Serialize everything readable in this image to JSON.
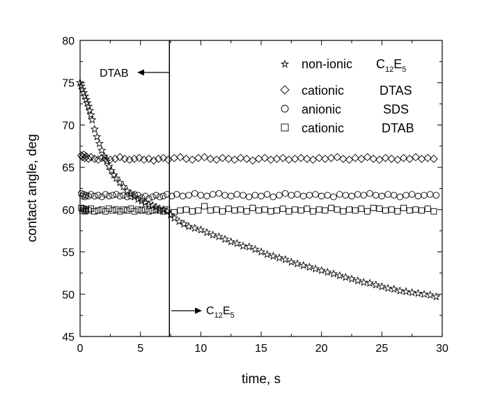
{
  "chart_data": {
    "type": "scatter",
    "xlabel": "time, s",
    "ylabel": "contact angle, deg",
    "xlim": [
      0,
      30
    ],
    "ylim": [
      45,
      80
    ],
    "xticks": [
      "0",
      "5",
      "10",
      "15",
      "20",
      "25",
      "30"
    ],
    "yticks": [
      "45",
      "50",
      "55",
      "60",
      "65",
      "70",
      "75",
      "80"
    ],
    "grid": false,
    "legend_position": "top-right",
    "vertical_line_x": 7.4,
    "annotations": [
      {
        "text": "DTAB",
        "arrow": "left"
      },
      {
        "text_main": "C",
        "sub1": "12",
        "text_mid": "E",
        "sub2": "5",
        "arrow": "right"
      }
    ],
    "legend": [
      {
        "type_label": "non-ionic",
        "name_main": "C",
        "sub1": "12",
        "name_mid": "E",
        "sub2": "5",
        "marker": "star"
      },
      {
        "type_label": "cationic",
        "name_main": "DTAS",
        "marker": "diamond"
      },
      {
        "type_label": "anionic",
        "name_main": "SDS",
        "marker": "circle"
      },
      {
        "type_label": "cationic",
        "name_main": "DTAB",
        "marker": "square"
      }
    ],
    "series": [
      {
        "name": "non-ionic C12E5",
        "marker": "star",
        "points": [
          [
            0.0,
            75.0
          ],
          [
            0.1,
            74.6
          ],
          [
            0.2,
            74.2
          ],
          [
            0.3,
            73.8
          ],
          [
            0.4,
            73.4
          ],
          [
            0.5,
            73.0
          ],
          [
            0.6,
            72.6
          ],
          [
            0.7,
            72.2
          ],
          [
            0.8,
            71.7
          ],
          [
            0.9,
            71.2
          ],
          [
            1.0,
            70.6
          ],
          [
            1.2,
            69.5
          ],
          [
            1.4,
            68.6
          ],
          [
            1.6,
            67.8
          ],
          [
            1.8,
            67.0
          ],
          [
            2.0,
            66.3
          ],
          [
            2.2,
            65.7
          ],
          [
            2.4,
            65.1
          ],
          [
            2.6,
            64.6
          ],
          [
            2.8,
            64.1
          ],
          [
            3.0,
            63.7
          ],
          [
            3.3,
            63.2
          ],
          [
            3.6,
            62.7
          ],
          [
            3.9,
            62.2
          ],
          [
            4.2,
            61.9
          ],
          [
            4.5,
            61.5
          ],
          [
            4.8,
            61.2
          ],
          [
            5.1,
            61.0
          ],
          [
            5.4,
            60.8
          ],
          [
            5.7,
            60.6
          ],
          [
            6.0,
            60.5
          ],
          [
            6.3,
            60.3
          ],
          [
            6.6,
            60.1
          ],
          [
            6.9,
            60.0
          ],
          [
            7.2,
            59.8
          ],
          [
            7.5,
            59.4
          ],
          [
            7.8,
            59.0
          ],
          [
            8.2,
            58.6
          ],
          [
            8.6,
            58.3
          ],
          [
            9.0,
            58.0
          ],
          [
            9.5,
            57.8
          ],
          [
            10.0,
            57.6
          ],
          [
            10.5,
            57.3
          ],
          [
            11.0,
            57.0
          ],
          [
            11.5,
            56.8
          ],
          [
            12.0,
            56.5
          ],
          [
            12.5,
            56.2
          ],
          [
            13.0,
            56.0
          ],
          [
            13.5,
            55.7
          ],
          [
            14.0,
            55.6
          ],
          [
            14.5,
            55.3
          ],
          [
            15.0,
            55.0
          ],
          [
            15.5,
            54.7
          ],
          [
            16.0,
            54.5
          ],
          [
            16.5,
            54.3
          ],
          [
            17.0,
            54.1
          ],
          [
            17.5,
            53.8
          ],
          [
            18.0,
            53.6
          ],
          [
            18.5,
            53.4
          ],
          [
            19.0,
            53.2
          ],
          [
            19.5,
            53.0
          ],
          [
            20.0,
            52.8
          ],
          [
            20.5,
            52.6
          ],
          [
            21.0,
            52.4
          ],
          [
            21.5,
            52.2
          ],
          [
            22.0,
            52.0
          ],
          [
            22.5,
            51.8
          ],
          [
            23.0,
            51.6
          ],
          [
            23.5,
            51.4
          ],
          [
            24.0,
            51.3
          ],
          [
            24.5,
            51.1
          ],
          [
            25.0,
            50.9
          ],
          [
            25.5,
            50.7
          ],
          [
            26.0,
            50.6
          ],
          [
            26.5,
            50.4
          ],
          [
            27.0,
            50.3
          ],
          [
            27.5,
            50.2
          ],
          [
            28.0,
            50.1
          ],
          [
            28.5,
            50.0
          ],
          [
            29.0,
            49.9
          ],
          [
            29.5,
            49.7
          ]
        ]
      },
      {
        "name": "cationic DTAS",
        "marker": "diamond",
        "points": [
          [
            0.1,
            66.4
          ],
          [
            0.2,
            66.2
          ],
          [
            0.3,
            66.5
          ],
          [
            0.4,
            66.1
          ],
          [
            0.5,
            66.3
          ],
          [
            0.7,
            66.0
          ],
          [
            0.9,
            66.2
          ],
          [
            1.2,
            66.0
          ],
          [
            1.5,
            65.9
          ],
          [
            1.8,
            66.1
          ],
          [
            2.1,
            66.0
          ],
          [
            2.5,
            65.9
          ],
          [
            2.9,
            66.0
          ],
          [
            3.3,
            66.2
          ],
          [
            3.7,
            66.0
          ],
          [
            4.1,
            65.9
          ],
          [
            4.5,
            66.0
          ],
          [
            4.9,
            66.1
          ],
          [
            5.3,
            65.9
          ],
          [
            5.7,
            66.0
          ],
          [
            6.1,
            65.8
          ],
          [
            6.5,
            66.0
          ],
          [
            6.9,
            66.1
          ],
          [
            7.3,
            65.9
          ],
          [
            7.8,
            66.1
          ],
          [
            8.3,
            66.2
          ],
          [
            8.8,
            66.0
          ],
          [
            9.3,
            65.9
          ],
          [
            9.8,
            66.1
          ],
          [
            10.3,
            66.2
          ],
          [
            10.8,
            66.0
          ],
          [
            11.3,
            65.9
          ],
          [
            11.8,
            66.1
          ],
          [
            12.3,
            66.0
          ],
          [
            12.8,
            65.9
          ],
          [
            13.3,
            66.1
          ],
          [
            13.8,
            66.0
          ],
          [
            14.3,
            65.8
          ],
          [
            14.8,
            66.0
          ],
          [
            15.3,
            66.1
          ],
          [
            15.8,
            65.9
          ],
          [
            16.3,
            66.0
          ],
          [
            16.8,
            66.1
          ],
          [
            17.3,
            65.9
          ],
          [
            17.8,
            66.0
          ],
          [
            18.3,
            66.1
          ],
          [
            18.8,
            66.0
          ],
          [
            19.3,
            65.9
          ],
          [
            19.8,
            66.1
          ],
          [
            20.3,
            66.0
          ],
          [
            20.8,
            66.1
          ],
          [
            21.3,
            66.2
          ],
          [
            21.8,
            66.0
          ],
          [
            22.3,
            65.9
          ],
          [
            22.8,
            66.1
          ],
          [
            23.3,
            66.0
          ],
          [
            23.8,
            66.2
          ],
          [
            24.3,
            66.0
          ],
          [
            24.8,
            65.9
          ],
          [
            25.3,
            66.1
          ],
          [
            25.8,
            66.0
          ],
          [
            26.3,
            65.9
          ],
          [
            26.8,
            66.1
          ],
          [
            27.3,
            66.0
          ],
          [
            27.8,
            66.2
          ],
          [
            28.3,
            66.0
          ],
          [
            28.8,
            66.1
          ],
          [
            29.3,
            66.0
          ]
        ]
      },
      {
        "name": "anionic SDS",
        "marker": "circle",
        "points": [
          [
            0.1,
            61.9
          ],
          [
            0.2,
            61.6
          ],
          [
            0.3,
            61.8
          ],
          [
            0.4,
            61.5
          ],
          [
            0.5,
            61.7
          ],
          [
            0.7,
            61.6
          ],
          [
            0.9,
            61.8
          ],
          [
            1.2,
            61.6
          ],
          [
            1.5,
            61.7
          ],
          [
            1.8,
            61.5
          ],
          [
            2.1,
            61.8
          ],
          [
            2.4,
            61.6
          ],
          [
            2.7,
            61.7
          ],
          [
            3.0,
            61.8
          ],
          [
            3.3,
            61.6
          ],
          [
            3.6,
            61.7
          ],
          [
            3.9,
            61.5
          ],
          [
            4.2,
            61.6
          ],
          [
            4.5,
            61.8
          ],
          [
            4.8,
            61.7
          ],
          [
            5.1,
            61.4
          ],
          [
            5.4,
            61.6
          ],
          [
            5.7,
            61.3
          ],
          [
            6.0,
            61.5
          ],
          [
            6.3,
            61.7
          ],
          [
            6.6,
            61.5
          ],
          [
            6.9,
            61.6
          ],
          [
            7.2,
            61.8
          ],
          [
            7.6,
            61.6
          ],
          [
            8.0,
            61.8
          ],
          [
            8.5,
            61.6
          ],
          [
            9.0,
            61.7
          ],
          [
            9.5,
            61.9
          ],
          [
            10.0,
            61.7
          ],
          [
            10.5,
            61.6
          ],
          [
            11.0,
            61.8
          ],
          [
            11.5,
            61.9
          ],
          [
            12.0,
            61.7
          ],
          [
            12.5,
            61.6
          ],
          [
            13.0,
            61.8
          ],
          [
            13.5,
            61.7
          ],
          [
            14.0,
            61.5
          ],
          [
            14.5,
            61.7
          ],
          [
            15.0,
            61.6
          ],
          [
            15.5,
            61.8
          ],
          [
            16.0,
            61.5
          ],
          [
            16.5,
            61.7
          ],
          [
            17.0,
            61.9
          ],
          [
            17.5,
            61.7
          ],
          [
            18.0,
            61.8
          ],
          [
            18.5,
            61.6
          ],
          [
            19.0,
            61.7
          ],
          [
            19.5,
            61.8
          ],
          [
            20.0,
            61.6
          ],
          [
            20.5,
            61.7
          ],
          [
            21.0,
            61.5
          ],
          [
            21.5,
            61.8
          ],
          [
            22.0,
            61.7
          ],
          [
            22.5,
            61.6
          ],
          [
            23.0,
            61.8
          ],
          [
            23.5,
            61.7
          ],
          [
            24.0,
            61.9
          ],
          [
            24.5,
            61.7
          ],
          [
            25.0,
            61.6
          ],
          [
            25.5,
            61.8
          ],
          [
            26.0,
            61.7
          ],
          [
            26.5,
            61.5
          ],
          [
            27.0,
            61.7
          ],
          [
            27.5,
            61.8
          ],
          [
            28.0,
            61.6
          ],
          [
            28.5,
            61.7
          ],
          [
            29.0,
            61.8
          ],
          [
            29.5,
            61.7
          ]
        ]
      },
      {
        "name": "cationic DTAB",
        "marker": "square",
        "points": [
          [
            0.1,
            60.2
          ],
          [
            0.2,
            59.9
          ],
          [
            0.3,
            60.1
          ],
          [
            0.4,
            59.8
          ],
          [
            0.5,
            60.0
          ],
          [
            0.7,
            59.9
          ],
          [
            0.9,
            60.1
          ],
          [
            1.2,
            59.8
          ],
          [
            1.5,
            59.9
          ],
          [
            1.8,
            60.0
          ],
          [
            2.1,
            59.8
          ],
          [
            2.4,
            60.1
          ],
          [
            2.7,
            59.9
          ],
          [
            3.0,
            60.0
          ],
          [
            3.3,
            59.8
          ],
          [
            3.6,
            60.0
          ],
          [
            3.9,
            59.9
          ],
          [
            4.2,
            60.1
          ],
          [
            4.5,
            59.8
          ],
          [
            4.8,
            60.0
          ],
          [
            5.1,
            59.9
          ],
          [
            5.4,
            60.0
          ],
          [
            5.7,
            59.8
          ],
          [
            6.0,
            59.9
          ],
          [
            6.3,
            60.0
          ],
          [
            6.6,
            59.9
          ],
          [
            6.9,
            59.8
          ],
          [
            7.2,
            60.0
          ],
          [
            7.8,
            59.7
          ],
          [
            8.3,
            59.9
          ],
          [
            8.8,
            60.0
          ],
          [
            9.3,
            59.8
          ],
          [
            9.8,
            59.9
          ],
          [
            10.3,
            60.4
          ],
          [
            10.8,
            59.9
          ],
          [
            11.3,
            60.0
          ],
          [
            11.8,
            59.8
          ],
          [
            12.3,
            60.1
          ],
          [
            12.8,
            59.9
          ],
          [
            13.3,
            60.0
          ],
          [
            13.8,
            59.8
          ],
          [
            14.3,
            60.2
          ],
          [
            14.8,
            59.9
          ],
          [
            15.3,
            60.0
          ],
          [
            15.8,
            59.8
          ],
          [
            16.3,
            59.9
          ],
          [
            16.8,
            60.1
          ],
          [
            17.3,
            59.8
          ],
          [
            17.8,
            60.0
          ],
          [
            18.3,
            59.9
          ],
          [
            18.8,
            60.1
          ],
          [
            19.3,
            59.8
          ],
          [
            19.8,
            60.0
          ],
          [
            20.3,
            59.9
          ],
          [
            20.8,
            60.2
          ],
          [
            21.3,
            60.0
          ],
          [
            21.8,
            59.8
          ],
          [
            22.3,
            60.0
          ],
          [
            22.8,
            59.9
          ],
          [
            23.3,
            60.1
          ],
          [
            23.8,
            59.8
          ],
          [
            24.3,
            60.2
          ],
          [
            24.8,
            60.1
          ],
          [
            25.3,
            59.9
          ],
          [
            25.8,
            60.0
          ],
          [
            26.3,
            59.8
          ],
          [
            26.8,
            60.2
          ],
          [
            27.3,
            59.9
          ],
          [
            27.8,
            60.0
          ],
          [
            28.3,
            59.9
          ],
          [
            28.8,
            60.1
          ],
          [
            29.3,
            59.8
          ]
        ]
      }
    ]
  }
}
